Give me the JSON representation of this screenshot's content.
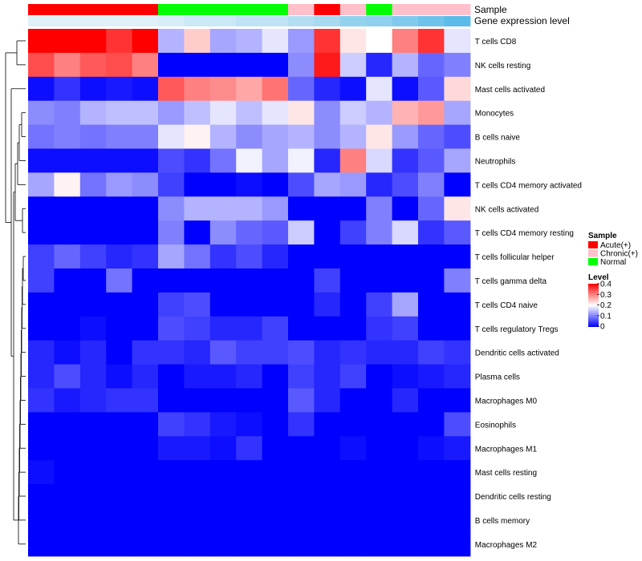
{
  "chart_data": {
    "type": "heatmap",
    "annotations": {
      "sample_label": "Sample",
      "gene_expression_label": "Gene expression level",
      "sample_groups": [
        "Acute(+)",
        "Acute(+)",
        "Acute(+)",
        "Acute(+)",
        "Acute(+)",
        "Normal",
        "Normal",
        "Normal",
        "Normal",
        "Normal",
        "Chronic(+)",
        "Acute(+)",
        "Chronic(+)",
        "Normal",
        "Chronic(+)",
        "Chronic(+)",
        "Chronic(+)"
      ],
      "gene_expression_colors": [
        "#dff0f8",
        "#dff0f8",
        "#dff0f8",
        "#dff0f8",
        "#dff0f8",
        "#d7edf7",
        "#cbe8f6",
        "#cbe8f6",
        "#bfe3f4",
        "#bfe3f4",
        "#b3def2",
        "#a7d9f1",
        "#93d2ef",
        "#8fd0ee",
        "#7fcaed",
        "#6fc3eb",
        "#5bbcea"
      ]
    },
    "rows": [
      "T cells CD8",
      "NK cells resting",
      "Mast cells activated",
      "Monocytes",
      "B cells naive",
      "Neutrophils",
      "T cells CD4 memory activated",
      "NK cells activated",
      "T cells CD4 memory resting",
      "T cells follicular helper",
      "T cells gamma delta",
      "T cells CD4 naive",
      "T cells regulatory  Tregs",
      "Dendritic cells activated",
      "Plasma cells",
      "Macrophages M0",
      "Eosinophils",
      "Macrophages M1",
      "Mast cells resting",
      "Dendritic cells resting",
      "B cells memory",
      "Macrophages M2"
    ],
    "values": [
      [
        0.4,
        0.4,
        0.4,
        0.36,
        0.4,
        0.14,
        0.24,
        0.13,
        0.14,
        0.18,
        0.12,
        0.36,
        0.22,
        0.2,
        0.3,
        0.36,
        0.18
      ],
      [
        0.34,
        0.3,
        0.33,
        0.34,
        0.3,
        0.0,
        0.0,
        0.0,
        0.0,
        0.0,
        0.11,
        0.38,
        0.16,
        0.03,
        0.14,
        0.08,
        0.1
      ],
      [
        0.01,
        0.04,
        0.01,
        0.02,
        0.01,
        0.33,
        0.3,
        0.29,
        0.27,
        0.31,
        0.08,
        0.03,
        0.01,
        0.18,
        0.01,
        0.07,
        0.23
      ],
      [
        0.11,
        0.1,
        0.14,
        0.15,
        0.15,
        0.12,
        0.15,
        0.18,
        0.15,
        0.18,
        0.22,
        0.11,
        0.16,
        0.14,
        0.26,
        0.28,
        0.13
      ],
      [
        0.09,
        0.1,
        0.09,
        0.1,
        0.1,
        0.18,
        0.21,
        0.14,
        0.11,
        0.13,
        0.14,
        0.11,
        0.14,
        0.22,
        0.12,
        0.08,
        0.06
      ],
      [
        0.01,
        0.01,
        0.01,
        0.01,
        0.01,
        0.06,
        0.04,
        0.09,
        0.19,
        0.13,
        0.19,
        0.03,
        0.3,
        0.17,
        0.04,
        0.07,
        0.13
      ],
      [
        0.13,
        0.21,
        0.09,
        0.12,
        0.11,
        0.05,
        0.0,
        0.0,
        0.01,
        0.0,
        0.06,
        0.13,
        0.12,
        0.03,
        0.06,
        0.1,
        0.0
      ],
      [
        0.0,
        0.0,
        0.0,
        0.0,
        0.0,
        0.11,
        0.14,
        0.14,
        0.14,
        0.12,
        0.0,
        0.0,
        0.0,
        0.1,
        0.0,
        0.08,
        0.22
      ],
      [
        0.0,
        0.0,
        0.0,
        0.0,
        0.0,
        0.1,
        0.0,
        0.11,
        0.08,
        0.07,
        0.16,
        0.0,
        0.05,
        0.1,
        0.17,
        0.04,
        0.07
      ],
      [
        0.05,
        0.08,
        0.05,
        0.03,
        0.04,
        0.13,
        0.09,
        0.04,
        0.06,
        0.03,
        0.0,
        0.0,
        0.0,
        0.0,
        0.0,
        0.0,
        0.0
      ],
      [
        0.05,
        0.0,
        0.0,
        0.09,
        0.0,
        0.0,
        0.0,
        0.0,
        0.0,
        0.0,
        0.0,
        0.05,
        0.0,
        0.0,
        0.0,
        0.0,
        0.1
      ],
      [
        0.0,
        0.0,
        0.0,
        0.0,
        0.0,
        0.05,
        0.06,
        0.0,
        0.0,
        0.0,
        0.0,
        0.03,
        0.0,
        0.05,
        0.13,
        0.0,
        0.0
      ],
      [
        0.0,
        0.0,
        0.01,
        0.0,
        0.0,
        0.06,
        0.05,
        0.03,
        0.03,
        0.05,
        0.0,
        0.0,
        0.0,
        0.04,
        0.05,
        0.0,
        0.0
      ],
      [
        0.03,
        0.01,
        0.03,
        0.0,
        0.04,
        0.04,
        0.03,
        0.07,
        0.05,
        0.05,
        0.06,
        0.03,
        0.04,
        0.03,
        0.03,
        0.05,
        0.04
      ],
      [
        0.03,
        0.06,
        0.03,
        0.01,
        0.03,
        0.0,
        0.02,
        0.02,
        0.03,
        0.0,
        0.05,
        0.03,
        0.05,
        0.0,
        0.01,
        0.02,
        0.03
      ],
      [
        0.04,
        0.02,
        0.03,
        0.04,
        0.04,
        0.0,
        0.0,
        0.0,
        0.0,
        0.0,
        0.07,
        0.03,
        0.0,
        0.0,
        0.03,
        0.0,
        0.0
      ],
      [
        0.0,
        0.0,
        0.0,
        0.0,
        0.0,
        0.05,
        0.04,
        0.02,
        0.01,
        0.0,
        0.04,
        0.0,
        0.0,
        0.0,
        0.0,
        0.0,
        0.06
      ],
      [
        0.0,
        0.0,
        0.0,
        0.0,
        0.0,
        0.02,
        0.02,
        0.01,
        0.04,
        0.0,
        0.0,
        0.0,
        0.01,
        0.0,
        0.0,
        0.01,
        0.02
      ],
      [
        0.01,
        0.0,
        0.0,
        0.0,
        0.0,
        0.0,
        0.0,
        0.0,
        0.0,
        0.0,
        0.0,
        0.0,
        0.0,
        0.0,
        0.0,
        0.0,
        0.0
      ],
      [
        0.0,
        0.0,
        0.0,
        0.0,
        0.0,
        0.0,
        0.0,
        0.0,
        0.0,
        0.0,
        0.0,
        0.0,
        0.0,
        0.0,
        0.0,
        0.0,
        0.0
      ],
      [
        0.0,
        0.0,
        0.0,
        0.0,
        0.0,
        0.0,
        0.0,
        0.0,
        0.0,
        0.0,
        0.0,
        0.0,
        0.0,
        0.0,
        0.0,
        0.0,
        0.0
      ],
      [
        0.0,
        0.0,
        0.0,
        0.0,
        0.0,
        0.0,
        0.0,
        0.0,
        0.0,
        0.0,
        0.0,
        0.0,
        0.0,
        0.0,
        0.0,
        0.0,
        0.0
      ]
    ],
    "color_scale": {
      "low": "#0000ff",
      "mid": "#ffffff",
      "high": "#ff0000",
      "range": [
        0,
        0.4
      ],
      "midpoint": 0.2
    },
    "legend": {
      "sample_title": "Sample",
      "sample_items": [
        {
          "label": "Acute(+)",
          "color": "#ff0000"
        },
        {
          "label": "Chronic(+)",
          "color": "#ffc0cb"
        },
        {
          "label": "Normal",
          "color": "#00ff00"
        }
      ],
      "level_title": "Level",
      "level_ticks": [
        "0.4",
        "0.3",
        "0.2",
        "0.1",
        "0"
      ]
    }
  }
}
